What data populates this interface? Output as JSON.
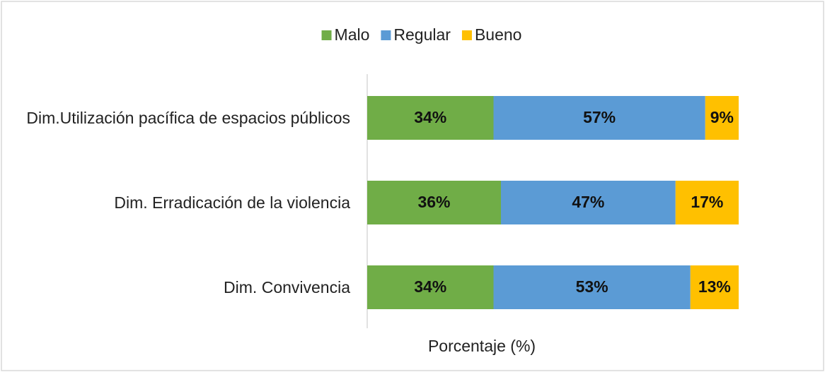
{
  "chart_data": {
    "type": "stacked_bar_horizontal",
    "categories": [
      "Dim.Utilización pacífica de espacios públicos",
      "Dim. Erradicación de la violencia",
      "Dim. Convivencia"
    ],
    "series": [
      {
        "name": "Malo",
        "color": "#70ad47",
        "values": [
          34,
          36,
          34
        ],
        "value_labels": [
          "34%",
          "36%",
          "34%"
        ]
      },
      {
        "name": "Regular",
        "color": "#5b9bd5",
        "values": [
          57,
          47,
          53
        ],
        "value_labels": [
          "57%",
          "47%",
          "53%"
        ]
      },
      {
        "name": "Bueno",
        "color": "#ffc000",
        "values": [
          9,
          17,
          13
        ],
        "value_labels": [
          "9%",
          "17%",
          "13%"
        ]
      }
    ],
    "xlim": [
      0,
      100
    ],
    "x_label": "Porcentaje (%)",
    "legend": "top"
  }
}
